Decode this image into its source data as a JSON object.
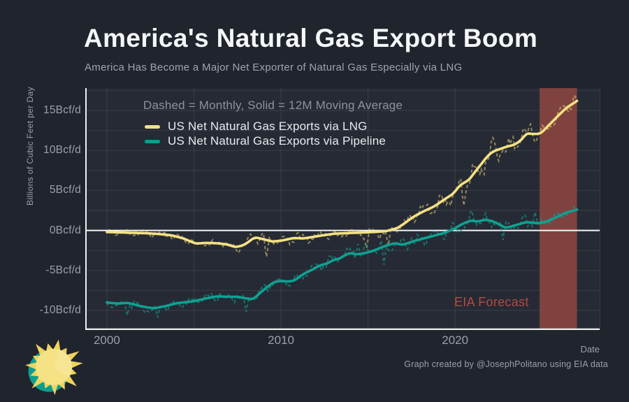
{
  "page": {
    "title": "America's Natural Gas Export Boom",
    "subtitle": "America Has Become a Major Net Exporter of Natural Gas Especially via LNG",
    "caption": "Graph created by @JosephPolitano using EIA data",
    "background": "#20242d",
    "panel_background": "#262a34"
  },
  "legend": {
    "header": "Dashed = Monthly, Solid = 12M Moving Average",
    "items": [
      {
        "label": "US Net Natural Gas Exports via LNG",
        "color": "#f2df8a"
      },
      {
        "label": "US Net Natural Gas Exports via Pipeline",
        "color": "#0d9e8e"
      }
    ]
  },
  "axes": {
    "y_title": "Billions of Cubic Feet per Day",
    "x_title": "Date",
    "y_ticks": [
      {
        "value": 15,
        "label": "15Bcf/d"
      },
      {
        "value": 10,
        "label": "10Bcf/d"
      },
      {
        "value": 5,
        "label": "5Bcf/d"
      },
      {
        "value": 0,
        "label": "0Bcf/d"
      },
      {
        "value": -5,
        "label": "-5Bcf/d"
      },
      {
        "value": -10,
        "label": "-10Bcf/d"
      }
    ],
    "x_ticks": [
      {
        "value": 2000,
        "label": "2000"
      },
      {
        "value": 2010,
        "label": "2010"
      },
      {
        "value": 2020,
        "label": "2020"
      }
    ]
  },
  "forecast": {
    "label": "EIA Forecast",
    "text_color": "#b14b41",
    "band_color": "#8a4540",
    "band_opacity": 0.9,
    "start": 2024.85,
    "end": 2027.0
  },
  "logo": {
    "name": "sun-icon",
    "colors": {
      "body": "#f5e285",
      "rays": "#eed45f",
      "crescent": "#0d9e8e"
    }
  },
  "chart_data": {
    "type": "line",
    "title": "America's Natural Gas Export Boom",
    "subtitle": "America Has Become a Major Net Exporter of Natural Gas Especially via LNG",
    "xlabel": "Date",
    "ylabel": "Billions of Cubic Feet per Day",
    "xlim": [
      1998.76,
      2028.3
    ],
    "ylim": [
      -12.45,
      17.8
    ],
    "x_grid_step": 5,
    "y_grid_step": 2.5,
    "grid_color": "rgba(255,255,255,0.09)",
    "zero_line_color": "#f5f6f7",
    "axis_color": "#eef0f2",
    "legend_note": "Dashed = Monthly, Solid = 12M Moving Average",
    "series": [
      {
        "name": "US Net Natural Gas Exports via LNG (12M Moving Average)",
        "style": "solid",
        "color": "#f5e183",
        "width": 3.6,
        "points": [
          [
            2000,
            -0.2
          ],
          [
            2000.8,
            -0.25
          ],
          [
            2001.5,
            -0.3
          ],
          [
            2002.3,
            -0.35
          ],
          [
            2003,
            -0.45
          ],
          [
            2003.7,
            -0.6
          ],
          [
            2004.4,
            -1.0
          ],
          [
            2005.1,
            -1.65
          ],
          [
            2005.7,
            -1.55
          ],
          [
            2006.3,
            -1.6
          ],
          [
            2006.9,
            -1.75
          ],
          [
            2007.4,
            -2.1
          ],
          [
            2007.9,
            -1.8
          ],
          [
            2008.5,
            -0.85
          ],
          [
            2009,
            -1.1
          ],
          [
            2009.5,
            -1.4
          ],
          [
            2010.1,
            -1.25
          ],
          [
            2010.7,
            -0.95
          ],
          [
            2011.3,
            -1.0
          ],
          [
            2012.3,
            -0.65
          ],
          [
            2013.1,
            -0.4
          ],
          [
            2014.2,
            -0.3
          ],
          [
            2015.3,
            -0.2
          ],
          [
            2016,
            -0.1
          ],
          [
            2016.7,
            0.3
          ],
          [
            2017.1,
            0.9
          ],
          [
            2017.6,
            1.7
          ],
          [
            2018.2,
            2.4
          ],
          [
            2018.8,
            3.0
          ],
          [
            2019.4,
            3.9
          ],
          [
            2019.9,
            4.6
          ],
          [
            2020.25,
            5.6
          ],
          [
            2020.5,
            5.95
          ],
          [
            2020.8,
            6.3
          ],
          [
            2021.1,
            7.2
          ],
          [
            2021.5,
            8.3
          ],
          [
            2021.9,
            9.4
          ],
          [
            2022.2,
            9.9
          ],
          [
            2022.6,
            10.2
          ],
          [
            2023,
            10.5
          ],
          [
            2023.4,
            10.7
          ],
          [
            2023.8,
            11.3
          ],
          [
            2024.1,
            12.15
          ],
          [
            2024.5,
            12.05
          ],
          [
            2024.9,
            12.1
          ],
          [
            2025.4,
            13.2
          ],
          [
            2025.9,
            14.3
          ],
          [
            2026.4,
            15.35
          ],
          [
            2027,
            16.2
          ]
        ]
      },
      {
        "name": "US Net Natural Gas Exports via Pipeline (12M Moving Average)",
        "style": "solid",
        "color": "#0fa192",
        "width": 3.6,
        "points": [
          [
            2000,
            -9.0
          ],
          [
            2000.6,
            -9.15
          ],
          [
            2001.2,
            -9.05
          ],
          [
            2002,
            -9.5
          ],
          [
            2002.7,
            -9.75
          ],
          [
            2003.4,
            -9.45
          ],
          [
            2004,
            -9.1
          ],
          [
            2005,
            -8.85
          ],
          [
            2005.7,
            -8.5
          ],
          [
            2006.3,
            -8.25
          ],
          [
            2007,
            -8.3
          ],
          [
            2007.5,
            -8.3
          ],
          [
            2008,
            -8.5
          ],
          [
            2008.4,
            -8.6
          ],
          [
            2009.1,
            -7.25
          ],
          [
            2009.6,
            -6.45
          ],
          [
            2010,
            -6.3
          ],
          [
            2010.4,
            -6.4
          ],
          [
            2010.8,
            -6.25
          ],
          [
            2011.1,
            -5.7
          ],
          [
            2011.5,
            -5.2
          ],
          [
            2011.9,
            -4.8
          ],
          [
            2012.2,
            -4.4
          ],
          [
            2012.7,
            -4.1
          ],
          [
            2013,
            -3.7
          ],
          [
            2013.4,
            -3.5
          ],
          [
            2013.7,
            -3.05
          ],
          [
            2014,
            -2.8
          ],
          [
            2014.3,
            -3.0
          ],
          [
            2014.8,
            -2.85
          ],
          [
            2015.3,
            -2.55
          ],
          [
            2015.9,
            -2.0
          ],
          [
            2016.5,
            -1.6
          ],
          [
            2017,
            -1.8
          ],
          [
            2017.6,
            -1.35
          ],
          [
            2018.2,
            -1.0
          ],
          [
            2018.8,
            -0.65
          ],
          [
            2019.4,
            -0.3
          ],
          [
            2019.9,
            0.15
          ],
          [
            2020.4,
            0.8
          ],
          [
            2020.9,
            1.25
          ],
          [
            2021.3,
            1.1
          ],
          [
            2021.7,
            1.35
          ],
          [
            2022.1,
            1.2
          ],
          [
            2022.5,
            0.8
          ],
          [
            2022.9,
            0.3
          ],
          [
            2023.2,
            0.5
          ],
          [
            2023.7,
            0.8
          ],
          [
            2024.1,
            1.05
          ],
          [
            2024.5,
            0.95
          ],
          [
            2024.9,
            0.9
          ],
          [
            2025.4,
            1.25
          ],
          [
            2025.9,
            1.75
          ],
          [
            2026.4,
            2.25
          ],
          [
            2027,
            2.6
          ]
        ]
      }
    ],
    "monthly": {
      "note": "Dashed monthly series scatter around the 12M moving averages",
      "start": 2000.0,
      "end": 2027.0,
      "step_months": 1,
      "seasonal_weight": 0.5,
      "noise_weight": 0.8,
      "forecast_noise_factor": 0.55,
      "series": [
        {
          "base": 0,
          "name": "US Net Natural Gas Exports via LNG (Monthly)",
          "color": "rgba(245,224,131,0.5)",
          "width": 2,
          "dash": "4.5 3.5",
          "seed": 11,
          "phase": 0.9,
          "amplitude": [
            [
              2000,
              0.45
            ],
            [
              2006,
              0.6
            ],
            [
              2009,
              0.85
            ],
            [
              2013,
              0.65
            ],
            [
              2016,
              0.85
            ],
            [
              2019,
              1.2
            ],
            [
              2020.6,
              1.7
            ],
            [
              2022,
              1.5
            ],
            [
              2024,
              1.35
            ],
            [
              2027,
              1.0
            ]
          ],
          "spikes": [
            [
              2009.2,
              -3.3
            ],
            [
              2014.9,
              -2.2
            ],
            [
              2016.2,
              -1.9
            ],
            [
              2020.5,
              3.1
            ],
            [
              2022.5,
              8.7
            ],
            [
              2022.2,
              11.6
            ],
            [
              2024.3,
              13.3
            ],
            [
              2026.8,
              16.9
            ]
          ]
        },
        {
          "base": 1,
          "name": "US Net Natural Gas Exports via Pipeline (Monthly)",
          "color": "rgba(15,161,146,0.6)",
          "width": 2,
          "dash": "4.5 3.5",
          "seed": 29,
          "phase": 2.6,
          "amplitude": [
            [
              2000,
              0.7
            ],
            [
              2005,
              0.75
            ],
            [
              2010,
              0.8
            ],
            [
              2015,
              0.9
            ],
            [
              2019,
              1.0
            ],
            [
              2023,
              1.05
            ],
            [
              2027,
              0.85
            ]
          ],
          "spikes": [
            [
              2001.2,
              -10.6
            ],
            [
              2002.9,
              -10.9
            ],
            [
              2008.0,
              -10.2
            ],
            [
              2014.4,
              -1.7
            ],
            [
              2015.9,
              -4.3
            ],
            [
              2020.9,
              2.5
            ],
            [
              2022.75,
              -1.2
            ],
            [
              2024.6,
              2.3
            ]
          ]
        }
      ]
    },
    "annotations": [
      {
        "text": "EIA Forecast",
        "x": 2022.3,
        "y": -9.0,
        "color": "#b14b41"
      }
    ],
    "forecast_band": {
      "start": 2024.85,
      "end": 2027.0,
      "color": "#8a4540",
      "opacity": 0.9
    }
  }
}
